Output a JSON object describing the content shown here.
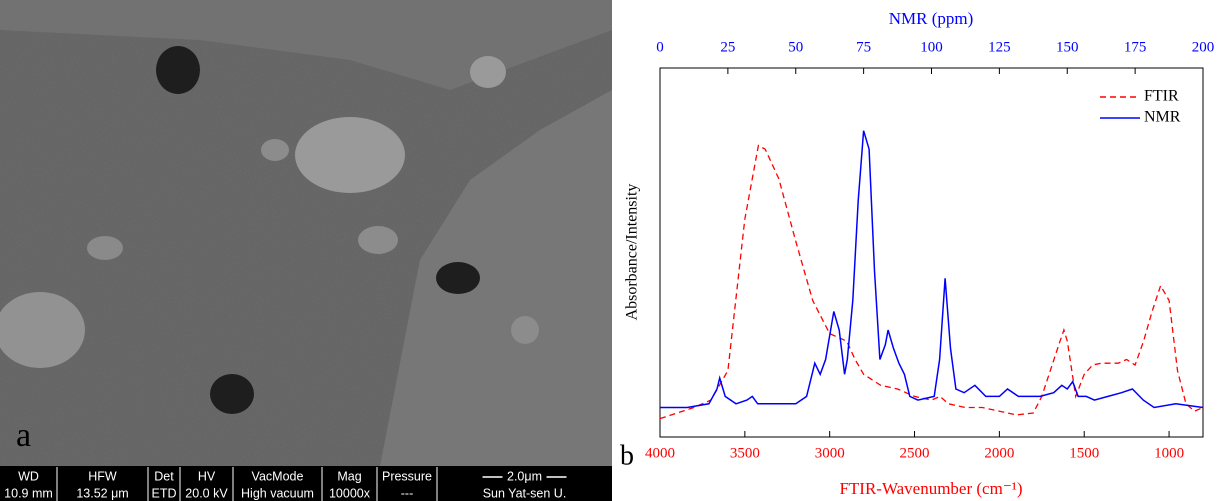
{
  "image_panel": {
    "label": "a",
    "info_headers": [
      "WD",
      "HFW",
      "Det",
      "HV",
      "VacMode",
      "Mag",
      "Pressure",
      "2.0μm"
    ],
    "info_values": [
      "10.9 mm",
      "13.52 μm",
      "ETD",
      "20.0 kV",
      "High vacuum",
      "10000x",
      "---",
      "Sun Yat-sen U."
    ]
  },
  "chart_data": {
    "type": "line",
    "panel_label": "b",
    "xlabel": "FTIR-Wavenumber (cm⁻¹)",
    "x2label": "NMR (ppm)",
    "ylabel": "Absorbance/Intensity",
    "xlim": [
      4000,
      800
    ],
    "xticks": [
      4000,
      3500,
      3000,
      2500,
      2000,
      1500,
      1000
    ],
    "x2lim": [
      0,
      200
    ],
    "x2ticks": [
      0,
      25,
      50,
      75,
      100,
      125,
      150,
      175,
      200
    ],
    "ylim": [
      0,
      1
    ],
    "legend": "upper right",
    "series": [
      {
        "name": "FTIR",
        "color": "#ff0000",
        "dashed": true,
        "axis": "x",
        "x": [
          4000,
          3800,
          3700,
          3600,
          3500,
          3420,
          3380,
          3300,
          3200,
          3100,
          3000,
          2900,
          2850,
          2800,
          2700,
          2600,
          2500,
          2400,
          2350,
          2300,
          2200,
          2100,
          2000,
          1900,
          1800,
          1750,
          1700,
          1650,
          1620,
          1600,
          1550,
          1500,
          1450,
          1400,
          1300,
          1250,
          1200,
          1150,
          1100,
          1050,
          1000,
          950,
          900,
          850,
          800
        ],
        "values": [
          0.05,
          0.08,
          0.1,
          0.18,
          0.59,
          0.79,
          0.78,
          0.7,
          0.53,
          0.37,
          0.28,
          0.26,
          0.21,
          0.17,
          0.14,
          0.13,
          0.11,
          0.1,
          0.11,
          0.09,
          0.08,
          0.08,
          0.07,
          0.06,
          0.065,
          0.11,
          0.18,
          0.25,
          0.29,
          0.26,
          0.11,
          0.17,
          0.195,
          0.2,
          0.2,
          0.21,
          0.195,
          0.26,
          0.34,
          0.41,
          0.37,
          0.18,
          0.09,
          0.07,
          0.08
        ]
      },
      {
        "name": "NMR",
        "color": "#0000ff",
        "dashed": false,
        "axis": "x2",
        "x": [
          0,
          10,
          18,
          21,
          22,
          24,
          28,
          32,
          34,
          36,
          45,
          50,
          54,
          57,
          59,
          61,
          64,
          66,
          68,
          69,
          71,
          73,
          75,
          77,
          79,
          81,
          83,
          84,
          86,
          88,
          90,
          92,
          95,
          101,
          103,
          105,
          107,
          109,
          112,
          116,
          120,
          125,
          128,
          132,
          140,
          145,
          148,
          150,
          152,
          154,
          157,
          160,
          165,
          170,
          174,
          178,
          182,
          190,
          200
        ],
        "values": [
          0.08,
          0.08,
          0.09,
          0.13,
          0.16,
          0.11,
          0.09,
          0.1,
          0.11,
          0.09,
          0.09,
          0.09,
          0.11,
          0.2,
          0.17,
          0.21,
          0.34,
          0.29,
          0.17,
          0.21,
          0.37,
          0.64,
          0.83,
          0.78,
          0.45,
          0.21,
          0.25,
          0.29,
          0.24,
          0.2,
          0.17,
          0.11,
          0.1,
          0.11,
          0.21,
          0.43,
          0.24,
          0.13,
          0.12,
          0.14,
          0.11,
          0.11,
          0.13,
          0.11,
          0.11,
          0.12,
          0.14,
          0.13,
          0.15,
          0.11,
          0.11,
          0.1,
          0.11,
          0.12,
          0.13,
          0.1,
          0.08,
          0.09,
          0.08
        ]
      }
    ]
  }
}
